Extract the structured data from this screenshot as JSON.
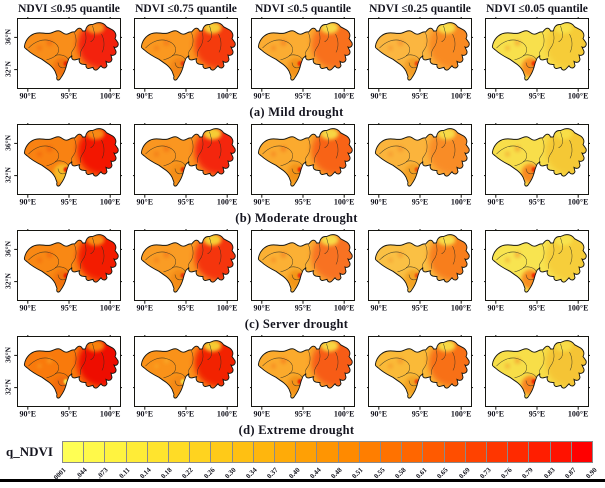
{
  "figure": {
    "column_headers": [
      "NDVI ≤0.95 quantile",
      "NDVI ≤0.75 quantile",
      "NDVI ≤0.5 quantile",
      "NDVI ≤0.25 quantile",
      "NDVI ≤0.05 quantile"
    ],
    "row_captions": [
      "(a) Mild drought",
      "(b) Moderate drought",
      "(c) Server  drought",
      "(d) Extreme  drought"
    ],
    "axes": {
      "x_ticks": [
        "90°E",
        "95°E",
        "100°E"
      ],
      "y_ticks": [
        "36°N",
        "32°N"
      ]
    },
    "colorbar": {
      "label": "q_NDVI",
      "ticks": [
        ".0001",
        ".044",
        ".073",
        "0.11",
        "0.14",
        "0.18",
        "0.22",
        "0.26",
        "0.30",
        "0.34",
        "0.37",
        "0.40",
        "0.44",
        "0.48",
        "0.51",
        "0.55",
        "0.58",
        "0.61",
        "0.65",
        "0.69",
        "0.73",
        "0.76",
        "0.79",
        "0.83",
        "0.87",
        "0.90"
      ],
      "colors": [
        "#FFFF54",
        "#FFF94A",
        "#FFF340",
        "#FFEC37",
        "#FFE42E",
        "#FFDC26",
        "#FFD31F",
        "#FFCA18",
        "#FFC012",
        "#FFB60D",
        "#FFAB08",
        "#FFA005",
        "#FF9502",
        "#FF8A00",
        "#FF7E00",
        "#FF7200",
        "#FF6600",
        "#FF5A00",
        "#FF4E00",
        "#FF4200",
        "#FF3600",
        "#FF2A00",
        "#FF1E00",
        "#FF1200",
        "#FF0000"
      ]
    },
    "panels": [
      [
        {
          "west": "#F98E1A",
          "east": "#F32408",
          "ne": "#F89A20",
          "south": "#F07010",
          "dot": "#E82505"
        },
        {
          "west": "#FA9820",
          "east": "#F53A0C",
          "ne": "#F6D437",
          "south": "#F28414",
          "dot": "#E83A08"
        },
        {
          "west": "#FBAC32",
          "east": "#F8701C",
          "ne": "#F7DF48",
          "south": "#F29018",
          "dot": "#EE2E06"
        },
        {
          "west": "#FBB640",
          "east": "#F98A24",
          "ne": "#F8E24C",
          "south": "#F29A20",
          "dot": "#EE4A0C"
        },
        {
          "west": "#F8E04C",
          "east": "#F6CC38",
          "ne": "#F8E24C",
          "south": "#F8861E",
          "dot": "#EE3406"
        }
      ],
      [
        {
          "west": "#F98212",
          "east": "#F31404",
          "ne": "#F89018",
          "south": "#F6C02C",
          "dot": "#E82004"
        },
        {
          "west": "#FA9620",
          "east": "#F42808",
          "ne": "#F6D637",
          "south": "#F28C16",
          "dot": "#E83006"
        },
        {
          "west": "#FBAA2E",
          "east": "#F86418",
          "ne": "#F7DD46",
          "south": "#F29016",
          "dot": "#EE2605"
        },
        {
          "west": "#FBB43C",
          "east": "#F98C26",
          "ne": "#F8E04A",
          "south": "#F29E22",
          "dot": "#EE520E"
        },
        {
          "west": "#F8DE4A",
          "east": "#F5C836",
          "ne": "#F8E04A",
          "south": "#F8801C",
          "dot": "#EE3205"
        }
      ],
      [
        {
          "west": "#F98814",
          "east": "#F31A02",
          "ne": "#F89418",
          "south": "#F07211",
          "dot": "#E82404"
        },
        {
          "west": "#FA9C24",
          "east": "#F5340A",
          "ne": "#F6D839",
          "south": "#F28A15",
          "dot": "#E83407"
        },
        {
          "west": "#FBB034",
          "east": "#F87220",
          "ne": "#F7E04A",
          "south": "#F29419",
          "dot": "#EE3007"
        },
        {
          "west": "#FAC044",
          "east": "#F87E1E",
          "ne": "#F8E24E",
          "south": "#F2A124",
          "dot": "#EE5610"
        },
        {
          "west": "#F8E450",
          "east": "#F6CE3A",
          "ne": "#F8E450",
          "south": "#F8841D",
          "dot": "#EE2C04"
        }
      ],
      [
        {
          "west": "#F97A0C",
          "east": "#EE1000",
          "ne": "#F8880F",
          "south": "#F06A0D",
          "dot": "#F8E04A"
        },
        {
          "west": "#FA9219",
          "east": "#F22206",
          "ne": "#F6D434",
          "south": "#F28812",
          "dot": "#F8DC46"
        },
        {
          "west": "#FBAA2C",
          "east": "#F75C14",
          "ne": "#F7DC44",
          "south": "#F29016",
          "dot": "#EE2805"
        },
        {
          "west": "#FABA38",
          "east": "#F87018",
          "ne": "#F8E048",
          "south": "#F2A020",
          "dot": "#EE4A0A"
        },
        {
          "west": "#F7DE48",
          "east": "#F5C434",
          "ne": "#F7DE48",
          "south": "#F87A1A",
          "dot": "#EE2A04"
        }
      ]
    ]
  }
}
